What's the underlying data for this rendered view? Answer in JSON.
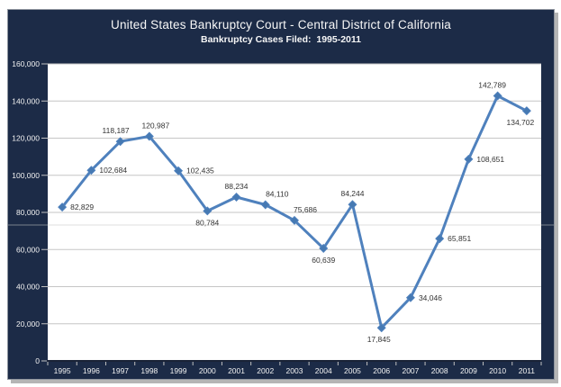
{
  "header": {
    "title": "United States Bankruptcy Court - Central District of California",
    "subtitle": "Bankruptcy Cases Filed:  1995-2011"
  },
  "chart_data": {
    "type": "line",
    "title": "United States Bankruptcy Court - Central District of California",
    "subtitle": "Bankruptcy Cases Filed:  1995-2011",
    "categories": [
      "1995",
      "1996",
      "1997",
      "1998",
      "1999",
      "2000",
      "2001",
      "2002",
      "2003",
      "2004",
      "2005",
      "2006",
      "2007",
      "2008",
      "2009",
      "2010",
      "2011"
    ],
    "values": [
      82829,
      102684,
      118187,
      120987,
      102435,
      80784,
      88234,
      84110,
      75686,
      60639,
      84244,
      17845,
      34046,
      65851,
      108651,
      142789,
      134702
    ],
    "point_labels": [
      "82,829",
      "102,684",
      "118,187",
      "120,987",
      "102,435",
      "80,784",
      "88,234",
      "84,110",
      "75,686",
      "60,639",
      "84,244",
      "17,845",
      "34,046",
      "65,851",
      "108,651",
      "142,789",
      "134,702"
    ],
    "label_positions": [
      "right",
      "right",
      "above",
      "above",
      "right",
      "below",
      "above",
      "above",
      "above",
      "below",
      "above",
      "below",
      "right",
      "right",
      "right",
      "above",
      "below"
    ],
    "label_dx": [
      0,
      0,
      -5,
      7,
      0,
      0,
      0,
      13,
      12,
      0,
      0,
      -3,
      0,
      0,
      0,
      -6,
      -7
    ],
    "xlabel": "",
    "ylabel": "",
    "ylim": [
      0,
      160000
    ],
    "y_ticks": [
      {
        "value": 160000,
        "label": "160,000"
      },
      {
        "value": 140000,
        "label": "140,000"
      },
      {
        "value": 120000,
        "label": "120,000"
      },
      {
        "value": 100000,
        "label": "100,000"
      },
      {
        "value": 80000,
        "label": "80,000"
      },
      {
        "value": 60000,
        "label": "60,000"
      },
      {
        "value": 40000,
        "label": "40,000"
      },
      {
        "value": 20000,
        "label": "20,000"
      },
      {
        "value": 0,
        "label": "0"
      }
    ],
    "grid": true,
    "legend": "none",
    "marker": "diamond",
    "colors": {
      "panel_bg": "#1c2b47",
      "plot_bg": "#ffffff",
      "line": "#4f81bd",
      "marker": "#4679b2",
      "gridline": "#c6c6c6",
      "tick": "#c0c0c0",
      "axis_line": "#1a2337",
      "data_label_text": "#333333",
      "axis_text": "#f2f2f2",
      "title_text": "#f7f7f7"
    }
  }
}
